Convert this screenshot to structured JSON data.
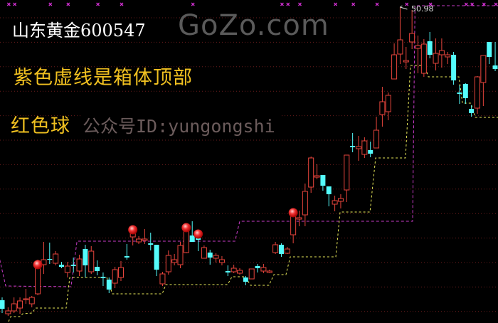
{
  "watermark": "GoZo.com",
  "title": "山东黄金600547",
  "note_box_top": "紫色虚线是箱体顶部",
  "note_red_ball": "红色球",
  "credit": "公众号ID:yungongshi",
  "high_label": "50.98",
  "colors": {
    "background": "#000000",
    "up": "#e8453c",
    "down": "#54fcfc",
    "box_top": "#c93cc9",
    "box_bottom": "#eaea5a",
    "grid": "#6a1c1c",
    "marker": "#d030d0",
    "title": "#ffffff",
    "note": "#f0c020",
    "credit": "#6b5b5b"
  },
  "chart_data": {
    "type": "candlestick",
    "ylim": [
      24.34,
      51.58
    ],
    "high_price": 50.98,
    "candles": [
      [
        26.26,
        26.5,
        25.18,
        25.54
      ],
      [
        25.12,
        25.66,
        24.94,
        25.36
      ],
      [
        25.36,
        26.5,
        25.18,
        25.96
      ],
      [
        25.6,
        26.5,
        25.12,
        26.2
      ],
      [
        26.32,
        27.22,
        25.96,
        26.38
      ],
      [
        25.96,
        26.62,
        25.66,
        26.5
      ],
      [
        26.8,
        29.68,
        26.68,
        28.96
      ],
      [
        29.26,
        31.18,
        28.48,
        29.68
      ],
      [
        29.74,
        31.12,
        29.32,
        29.68
      ],
      [
        29.38,
        30.4,
        29.2,
        30.16
      ],
      [
        29.26,
        29.5,
        28.96,
        29.08
      ],
      [
        28.6,
        29.5,
        28.18,
        29.14
      ],
      [
        29.26,
        29.86,
        28.6,
        29.14
      ],
      [
        28.72,
        30.1,
        28.3,
        29.74
      ],
      [
        30.58,
        30.94,
        28.18,
        29.2
      ],
      [
        28.66,
        30.82,
        28.48,
        30.4
      ],
      [
        29.08,
        29.62,
        28.36,
        28.72
      ],
      [
        28.24,
        28.6,
        27.46,
        28.12
      ],
      [
        28.0,
        28.18,
        26.86,
        27.16
      ],
      [
        27.7,
        29.08,
        27.28,
        28.84
      ],
      [
        28.18,
        29.56,
        27.88,
        29.02
      ],
      [
        29.98,
        31.0,
        29.68,
        29.86
      ],
      [
        31.6,
        31.9,
        30.88,
        31.9
      ],
      [
        31.18,
        31.66,
        31.0,
        31.42
      ],
      [
        31.3,
        32.26,
        31.0,
        31.42
      ],
      [
        31.06,
        31.96,
        30.46,
        30.94
      ],
      [
        30.94,
        30.94,
        28.3,
        28.84
      ],
      [
        27.64,
        28.66,
        27.46,
        28.48
      ],
      [
        28.66,
        30.46,
        28.42,
        30.04
      ],
      [
        29.44,
        30.16,
        29.2,
        29.68
      ],
      [
        29.26,
        31.18,
        28.96,
        30.88
      ],
      [
        30.28,
        32.26,
        30.22,
        32.08
      ],
      [
        31.72,
        32.92,
        31.18,
        31.18
      ],
      [
        31.54,
        31.78,
        30.4,
        31.36
      ],
      [
        29.8,
        30.88,
        29.8,
        30.7
      ],
      [
        30.28,
        30.52,
        29.26,
        29.86
      ],
      [
        29.8,
        30.22,
        29.44,
        30.04
      ],
      [
        29.44,
        29.98,
        29.2,
        29.68
      ],
      [
        28.72,
        29.2,
        28.3,
        28.6
      ],
      [
        28.66,
        29.26,
        28.54,
        28.96
      ],
      [
        28.54,
        28.96,
        28.42,
        28.78
      ],
      [
        28.18,
        28.3,
        27.52,
        27.82
      ],
      [
        28.06,
        28.9,
        28.06,
        28.9
      ],
      [
        29.14,
        29.32,
        28.6,
        28.96
      ],
      [
        28.72,
        29.32,
        28.54,
        29.02
      ],
      [
        28.6,
        28.84,
        28.54,
        28.72
      ],
      [
        30.28,
        31.18,
        30.16,
        30.94
      ],
      [
        30.94,
        31.06,
        29.92,
        30.16
      ],
      [
        30.22,
        30.76,
        30.16,
        30.58
      ],
      [
        31.78,
        33.34,
        31.06,
        33.34
      ],
      [
        33.1,
        33.82,
        32.5,
        33.22
      ],
      [
        33.46,
        36.1,
        32.5,
        35.44
      ],
      [
        35.8,
        38.38,
        35.32,
        38.26
      ],
      [
        36.64,
        37.72,
        36.46,
        36.76
      ],
      [
        36.82,
        36.82,
        35.5,
        35.92
      ],
      [
        35.86,
        35.86,
        34.18,
        35.2
      ],
      [
        34.36,
        35.08,
        33.76,
        34.66
      ],
      [
        34.6,
        35.2,
        34.0,
        34.84
      ],
      [
        35.56,
        38.5,
        34.54,
        38.5
      ],
      [
        39.28,
        40.36,
        38.74,
        39.16
      ],
      [
        39.04,
        40.12,
        38.02,
        39.22
      ],
      [
        38.56,
        40.0,
        38.26,
        39.7
      ],
      [
        38.92,
        39.64,
        38.32,
        38.62
      ],
      [
        39.1,
        41.74,
        39.1,
        40.6
      ],
      [
        41.92,
        44.26,
        40.9,
        43.0
      ],
      [
        42.16,
        43.78,
        41.44,
        43.54
      ],
      [
        44.92,
        47.92,
        44.92,
        46.96
      ],
      [
        47.02,
        50.98,
        46.18,
        48.22
      ],
      [
        46.36,
        47.62,
        45.76,
        46.48
      ],
      [
        48.04,
        50.74,
        47.44,
        48.76
      ],
      [
        47.5,
        48.58,
        45.4,
        47.74
      ],
      [
        45.4,
        48.28,
        45.1,
        47.86
      ],
      [
        48.1,
        48.88,
        46.66,
        46.96
      ],
      [
        46.24,
        48.34,
        45.64,
        47.08
      ],
      [
        46.96,
        48.34,
        45.88,
        47.32
      ],
      [
        46.78,
        47.2,
        46.18,
        46.96
      ],
      [
        46.96,
        47.2,
        44.44,
        44.8
      ],
      [
        43.78,
        44.38,
        42.82,
        43.66
      ],
      [
        44.5,
        44.56,
        42.82,
        43.3
      ],
      [
        42.4,
        42.7,
        41.74,
        42.04
      ],
      [
        42.46,
        45.16,
        41.98,
        45.1
      ],
      [
        44.62,
        46.9,
        42.64,
        46.9
      ],
      [
        48.04,
        48.04,
        46.18,
        46.78
      ],
      [
        46.06,
        48.04,
        45.58,
        45.76
      ]
    ],
    "candle_fields": [
      "open",
      "high",
      "low",
      "close"
    ],
    "red_ball_bars": [
      6,
      22,
      31,
      33,
      49
    ],
    "box_top_line": [
      [
        -0.4,
        29.68
      ],
      [
        0.6,
        27.46
      ],
      [
        11.6,
        27.4
      ],
      [
        12.6,
        31.24
      ],
      [
        39.2,
        31.24
      ],
      [
        40.0,
        32.92
      ],
      [
        69.1,
        32.92
      ],
      [
        69.5,
        51.1
      ],
      [
        83.5,
        51.1
      ]
    ],
    "box_bottom_line": [
      [
        1.08,
        24.46
      ],
      [
        1.44,
        24.88
      ],
      [
        2.99,
        24.88
      ],
      [
        3.47,
        25.12
      ],
      [
        5.03,
        25.18
      ],
      [
        5.63,
        25.6
      ],
      [
        10.78,
        25.6
      ],
      [
        11.38,
        28.18
      ],
      [
        17.6,
        28.18
      ],
      [
        18.56,
        26.8
      ],
      [
        26.95,
        26.8
      ],
      [
        27.54,
        27.58
      ],
      [
        37.96,
        27.58
      ],
      [
        38.68,
        28.24
      ],
      [
        40.96,
        28.24
      ],
      [
        41.8,
        27.52
      ],
      [
        44.91,
        27.52
      ],
      [
        45.75,
        28.42
      ],
      [
        47.78,
        28.42
      ],
      [
        48.5,
        29.92
      ],
      [
        56.17,
        29.92
      ],
      [
        56.89,
        33.7
      ],
      [
        61.92,
        33.7
      ],
      [
        62.87,
        38.26
      ],
      [
        67.9,
        38.26
      ],
      [
        68.74,
        46.06
      ],
      [
        71.14,
        46.06
      ],
      [
        71.74,
        45.1
      ],
      [
        76.89,
        45.1
      ],
      [
        77.49,
        42.88
      ],
      [
        78.92,
        42.88
      ],
      [
        79.64,
        41.68
      ],
      [
        83.47,
        41.68
      ]
    ],
    "top_markers": [
      1,
      2,
      8,
      11,
      16,
      20,
      32,
      47,
      48,
      50,
      56,
      59,
      63,
      68,
      72,
      78,
      79,
      81,
      83
    ]
  }
}
